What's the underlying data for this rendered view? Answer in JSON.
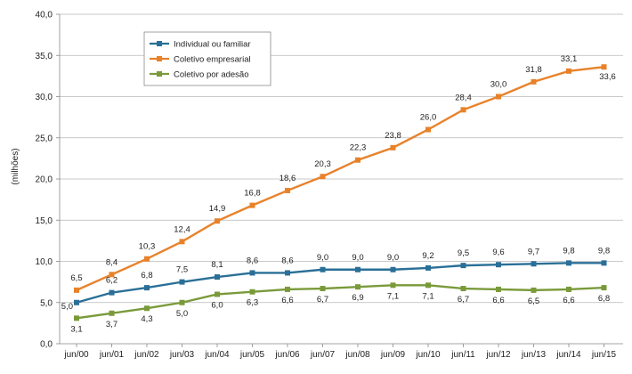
{
  "chart_data": {
    "type": "line",
    "title": "",
    "xlabel": "",
    "ylabel": "(milhões)",
    "ylim": [
      0,
      40
    ],
    "yticks": [
      "0,0",
      "5,0",
      "10,0",
      "15,0",
      "20,0",
      "25,0",
      "30,0",
      "35,0",
      "40,0"
    ],
    "ytick_values": [
      0,
      5,
      10,
      15,
      20,
      25,
      30,
      35,
      40
    ],
    "grid": "horizontal",
    "legend_position": "top-left",
    "categories": [
      "jun/00",
      "jun/01",
      "jun/02",
      "jun/03",
      "jun/04",
      "jun/05",
      "jun/06",
      "jun/07",
      "jun/08",
      "jun/09",
      "jun/10",
      "jun/11",
      "jun/12",
      "jun/13",
      "jun/14",
      "jun/15"
    ],
    "series": [
      {
        "name": "Individual ou familiar",
        "color": "#2a6f97",
        "values": [
          5.0,
          6.2,
          6.8,
          7.5,
          8.1,
          8.6,
          8.6,
          9.0,
          9.0,
          9.0,
          9.2,
          9.5,
          9.6,
          9.7,
          9.8,
          9.8
        ],
        "labels": [
          "5,0",
          "6,2",
          "6,8",
          "7,5",
          "8,1",
          "8,6",
          "8,6",
          "9,0",
          "9,0",
          "9,0",
          "9,2",
          "9,5",
          "9,6",
          "9,7",
          "9,8",
          "9,8"
        ]
      },
      {
        "name": "Coletivo empresarial",
        "color": "#e8822a",
        "values": [
          6.5,
          8.4,
          10.3,
          12.4,
          14.9,
          16.8,
          18.6,
          20.3,
          22.3,
          23.8,
          26.0,
          28.4,
          30.0,
          31.8,
          33.1,
          33.6
        ],
        "labels": [
          "6,5",
          "8,4",
          "10,3",
          "12,4",
          "14,9",
          "16,8",
          "18,6",
          "20,3",
          "22,3",
          "23,8",
          "26,0",
          "28,4",
          "30,0",
          "31,8",
          "33,1",
          "33,6"
        ]
      },
      {
        "name": "Coletivo por adesão",
        "color": "#7a9a3a",
        "values": [
          3.1,
          3.7,
          4.3,
          5.0,
          6.0,
          6.3,
          6.6,
          6.7,
          6.9,
          7.1,
          7.1,
          6.7,
          6.6,
          6.5,
          6.6,
          6.8
        ],
        "labels": [
          "3,1",
          "3,7",
          "4,3",
          "5,0",
          "6,0",
          "6,3",
          "6,6",
          "6,7",
          "6,9",
          "7,1",
          "7,1",
          "6,7",
          "6,6",
          "6,5",
          "6,6",
          "6,8"
        ]
      }
    ]
  }
}
